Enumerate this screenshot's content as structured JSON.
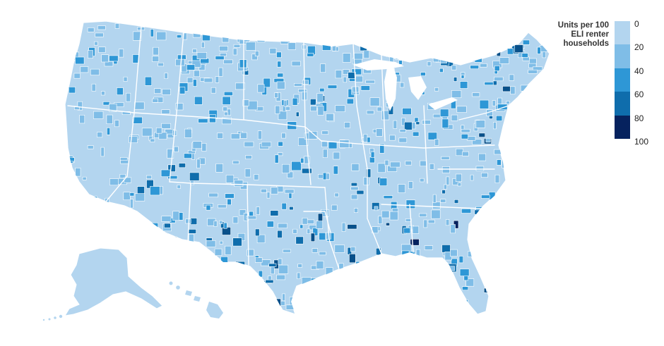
{
  "legend": {
    "title": "Units per 100\nELI renter\nhouseholds",
    "ticks": [
      "0",
      "20",
      "40",
      "60",
      "80",
      "100"
    ],
    "colors": [
      "#b3d5ef",
      "#7fbde7",
      "#2e97d6",
      "#0f6dac",
      "#08508a",
      "#06225e"
    ]
  },
  "map": {
    "region": "United States (contiguous), Alaska, Hawaii",
    "unit": "county",
    "base_color": "#b3d5ef",
    "border_color": "#ffffff"
  }
}
